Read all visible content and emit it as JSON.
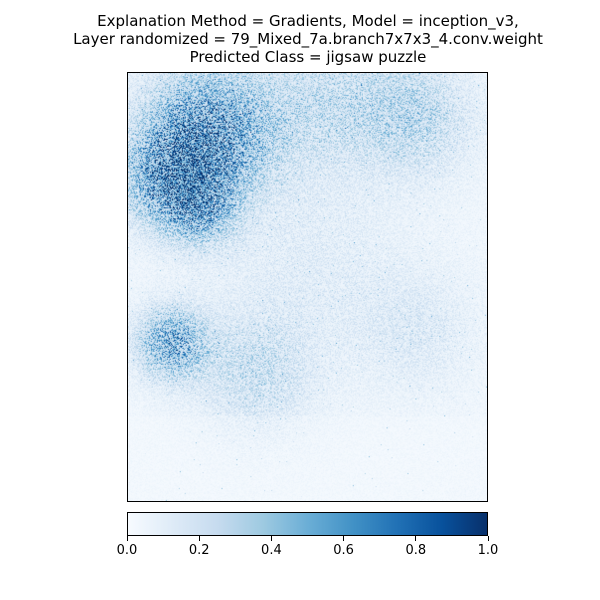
{
  "chart_data": {
    "type": "heatmap",
    "title_lines": [
      "Explanation Method = Gradients, Model = inception_v3,",
      "Layer randomized = 79_Mixed_7a.branch7x7x3_4.conv.weight",
      "Predicted Class = jigsaw puzzle"
    ],
    "colormap": "Blues",
    "colormap_stops": [
      "#f7fbff",
      "#deebf7",
      "#c6dbef",
      "#9ecae1",
      "#6baed6",
      "#4292c6",
      "#2171b5",
      "#08519c",
      "#08306b"
    ],
    "colorbar": {
      "range": [
        0.0,
        1.0
      ],
      "ticks": [
        "0.0",
        "0.2",
        "0.4",
        "0.6",
        "0.8",
        "1.0"
      ]
    },
    "axes_visible": false,
    "description_of_values": "attribution intensity in [0,1]; highest in upper-left region and a band at left-middle, low elsewhere"
  }
}
